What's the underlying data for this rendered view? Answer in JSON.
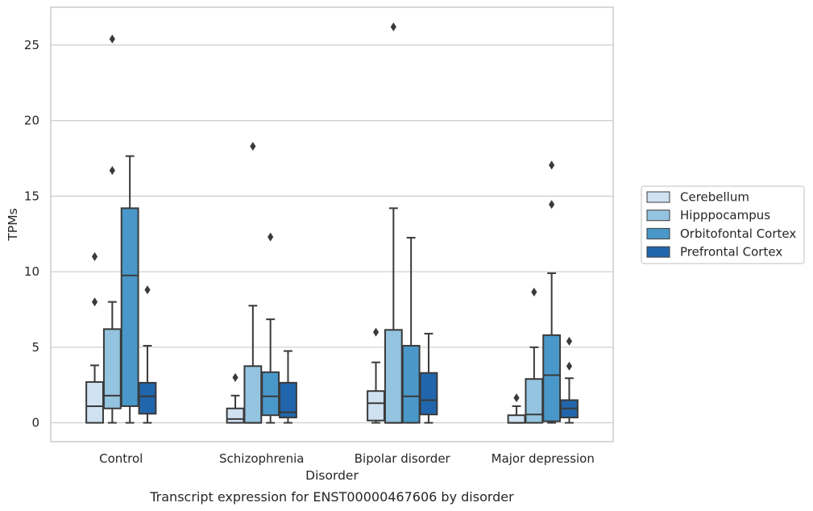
{
  "chart_data": {
    "type": "box",
    "title": "",
    "caption": "Transcript expression for ENST00000467606 by disorder",
    "xlabel": "Disorder",
    "ylabel": "TPMs",
    "ylim": [
      -1.25,
      27.5
    ],
    "yticks": [
      0,
      5,
      10,
      15,
      20,
      25
    ],
    "grid": "horizontal",
    "legend_position": "right",
    "categories": [
      "Control",
      "Schizophrenia",
      "Bipolar disorder",
      "Major depression"
    ],
    "series": [
      {
        "name": "Cerebellum",
        "color": "#d0e1f2",
        "boxes": [
          {
            "whislo": 0,
            "q1": 0,
            "med": 1.1,
            "q3": 2.7,
            "whishi": 3.8,
            "fliers": [
              8.0,
              11.0
            ]
          },
          {
            "whislo": 0,
            "q1": 0,
            "med": 0.25,
            "q3": 0.95,
            "whishi": 1.8,
            "fliers": [
              3.0
            ]
          },
          {
            "whislo": 0,
            "q1": 0.15,
            "med": 1.3,
            "q3": 2.1,
            "whishi": 4.0,
            "fliers": [
              6.0
            ]
          },
          {
            "whislo": 0,
            "q1": 0,
            "med": 0,
            "q3": 0.5,
            "whishi": 1.1,
            "fliers": [
              1.65
            ]
          }
        ]
      },
      {
        "name": "Hipppocampus",
        "color": "#94c4df",
        "boxes": [
          {
            "whislo": 0,
            "q1": 0.95,
            "med": 1.8,
            "q3": 6.2,
            "whishi": 8.0,
            "fliers": [
              16.7,
              25.4
            ]
          },
          {
            "whislo": 0,
            "q1": 0,
            "med": 0,
            "q3": 3.75,
            "whishi": 7.75,
            "fliers": [
              18.3
            ]
          },
          {
            "whislo": 0,
            "q1": 0,
            "med": 0,
            "q3": 6.15,
            "whishi": 14.2,
            "fliers": [
              26.2
            ]
          },
          {
            "whislo": 0,
            "q1": 0,
            "med": 0.55,
            "q3": 2.9,
            "whishi": 5.0,
            "fliers": [
              8.65
            ]
          }
        ]
      },
      {
        "name": "Orbitofontal Cortex",
        "color": "#4a98c9",
        "boxes": [
          {
            "whislo": 0,
            "q1": 1.1,
            "med": 9.75,
            "q3": 14.2,
            "whishi": 17.65,
            "fliers": []
          },
          {
            "whislo": 0,
            "q1": 0.5,
            "med": 1.75,
            "q3": 3.35,
            "whishi": 6.85,
            "fliers": [
              12.3
            ]
          },
          {
            "whislo": 0,
            "q1": 0,
            "med": 1.75,
            "q3": 5.1,
            "whishi": 12.25,
            "fliers": []
          },
          {
            "whislo": 0,
            "q1": 0.1,
            "med": 3.15,
            "q3": 5.8,
            "whishi": 9.9,
            "fliers": [
              14.45,
              17.05
            ]
          }
        ]
      },
      {
        "name": "Prefrontal Cortex",
        "color": "#2166ac",
        "boxes": [
          {
            "whislo": 0,
            "q1": 0.6,
            "med": 1.75,
            "q3": 2.65,
            "whishi": 5.1,
            "fliers": [
              8.8
            ]
          },
          {
            "whislo": 0,
            "q1": 0.35,
            "med": 0.7,
            "q3": 2.65,
            "whishi": 4.75,
            "fliers": []
          },
          {
            "whislo": 0,
            "q1": 0.55,
            "med": 1.5,
            "q3": 3.3,
            "whishi": 5.9,
            "fliers": []
          },
          {
            "whislo": 0,
            "q1": 0.35,
            "med": 0.95,
            "q3": 1.5,
            "whishi": 2.95,
            "fliers": [
              3.75,
              5.4
            ]
          }
        ]
      }
    ]
  }
}
